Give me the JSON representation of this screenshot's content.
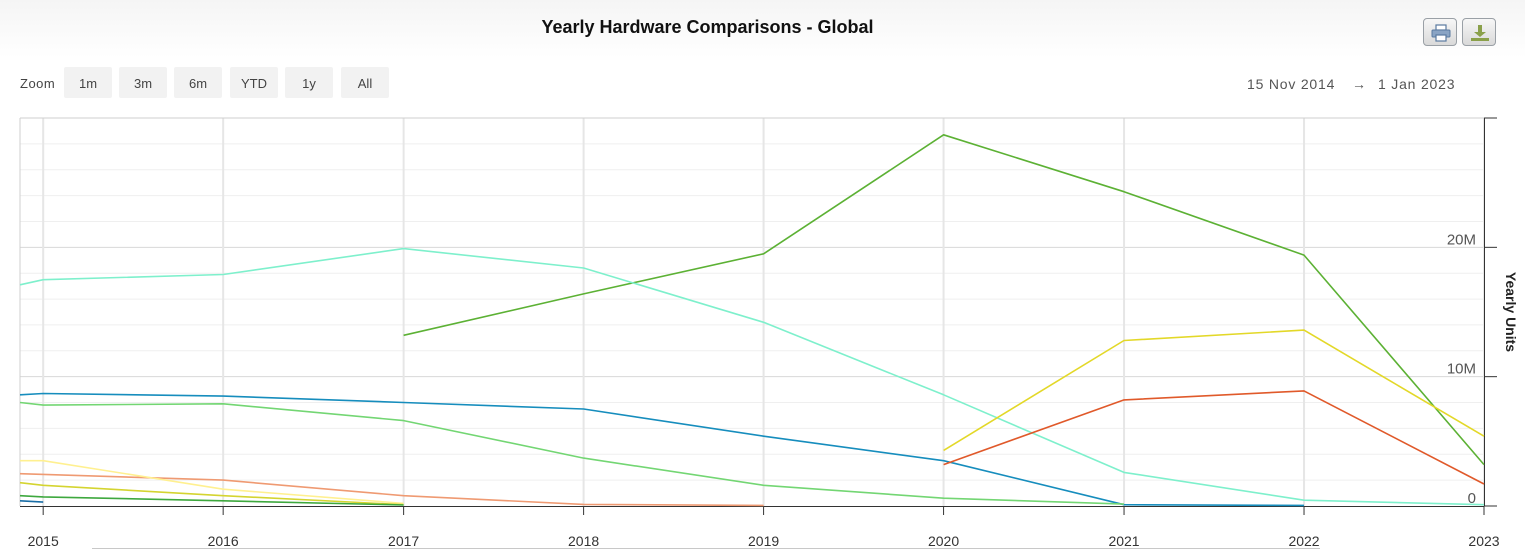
{
  "header": {
    "title": "Yearly Hardware Comparisons - Global",
    "print_icon": "printer-icon",
    "download_icon": "download-icon"
  },
  "zoom": {
    "label": "Zoom",
    "buttons": [
      "1m",
      "3m",
      "6m",
      "YTD",
      "1y",
      "All"
    ]
  },
  "range": {
    "from": "15 Nov 2014",
    "arrow": "→",
    "to": "1 Jan 2023"
  },
  "colors": {
    "grid": "#e6e6e6",
    "axis": "#333333"
  },
  "chart_data": {
    "type": "line",
    "title": "Yearly Hardware Comparisons - Global",
    "xlabel": "",
    "ylabel": "Yearly Units",
    "xlim": [
      "2014-11-15",
      "2023-01-01"
    ],
    "ylim": [
      0,
      30000000
    ],
    "grid": true,
    "legend": "none",
    "x_tick_labels": [
      "2015",
      "2016",
      "2017",
      "2018",
      "2019",
      "2020",
      "2021",
      "2022",
      "2023"
    ],
    "y_tick_labels": [
      {
        "value": 0,
        "label": "0"
      },
      {
        "value": 10000000,
        "label": "10M"
      },
      {
        "value": 20000000,
        "label": "20M"
      }
    ],
    "series": [
      {
        "color": "#5cb134",
        "points": [
          [
            "2017-01-01",
            13200000
          ],
          [
            "2018-01-01",
            16400000
          ],
          [
            "2019-01-01",
            19500000
          ],
          [
            "2020-01-01",
            28700000
          ],
          [
            "2021-01-01",
            24300000
          ],
          [
            "2022-01-01",
            19400000
          ],
          [
            "2023-01-01",
            3200000
          ]
        ]
      },
      {
        "color": "#7ef0cc",
        "points": [
          [
            "2014-11-15",
            17100000
          ],
          [
            "2015-01-01",
            17500000
          ],
          [
            "2016-01-01",
            17900000
          ],
          [
            "2017-01-01",
            19900000
          ],
          [
            "2018-01-01",
            18400000
          ],
          [
            "2019-01-01",
            14200000
          ],
          [
            "2020-01-01",
            8600000
          ],
          [
            "2021-01-01",
            2600000
          ],
          [
            "2022-01-01",
            450000
          ],
          [
            "2023-01-01",
            100000
          ]
        ]
      },
      {
        "color": "#168dbd",
        "points": [
          [
            "2014-11-15",
            8600000
          ],
          [
            "2015-01-01",
            8700000
          ],
          [
            "2016-01-01",
            8500000
          ],
          [
            "2017-01-01",
            8000000
          ],
          [
            "2018-01-01",
            7500000
          ],
          [
            "2019-01-01",
            5400000
          ],
          [
            "2020-01-01",
            3500000
          ],
          [
            "2021-01-01",
            100000
          ],
          [
            "2022-01-01",
            50000
          ]
        ]
      },
      {
        "color": "#73d673",
        "points": [
          [
            "2014-11-15",
            8000000
          ],
          [
            "2015-01-01",
            7800000
          ],
          [
            "2016-01-01",
            7900000
          ],
          [
            "2017-01-01",
            6600000
          ],
          [
            "2018-01-01",
            3700000
          ],
          [
            "2019-01-01",
            1600000
          ],
          [
            "2020-01-01",
            600000
          ],
          [
            "2021-01-01",
            150000
          ]
        ]
      },
      {
        "color": "#e3d828",
        "points": [
          [
            "2020-01-01",
            4300000
          ],
          [
            "2021-01-01",
            12800000
          ],
          [
            "2022-01-01",
            13600000
          ],
          [
            "2023-01-01",
            5400000
          ]
        ]
      },
      {
        "color": "#e0592a",
        "points": [
          [
            "2020-01-01",
            3200000
          ],
          [
            "2021-01-01",
            8200000
          ],
          [
            "2022-01-01",
            8900000
          ],
          [
            "2023-01-01",
            1700000
          ]
        ]
      },
      {
        "color": "#ef9a72",
        "points": [
          [
            "2014-11-15",
            2500000
          ],
          [
            "2016-01-01",
            2000000
          ],
          [
            "2017-01-01",
            800000
          ],
          [
            "2018-01-01",
            120000
          ],
          [
            "2019-01-01",
            50000
          ]
        ]
      },
      {
        "color": "#fff090",
        "points": [
          [
            "2014-11-15",
            3500000
          ],
          [
            "2015-01-01",
            3500000
          ],
          [
            "2016-01-01",
            1300000
          ],
          [
            "2017-01-01",
            200000
          ]
        ]
      },
      {
        "color": "#d4d430",
        "points": [
          [
            "2014-11-15",
            1800000
          ],
          [
            "2015-01-01",
            1600000
          ],
          [
            "2016-01-01",
            800000
          ],
          [
            "2017-01-01",
            100000
          ]
        ]
      },
      {
        "color": "#3ea83e",
        "points": [
          [
            "2014-11-15",
            800000
          ],
          [
            "2015-01-01",
            700000
          ],
          [
            "2016-01-01",
            400000
          ],
          [
            "2017-01-01",
            80000
          ]
        ]
      },
      {
        "color": "#1a6ea6",
        "points": [
          [
            "2014-11-15",
            400000
          ],
          [
            "2015-01-01",
            300000
          ]
        ]
      }
    ]
  }
}
